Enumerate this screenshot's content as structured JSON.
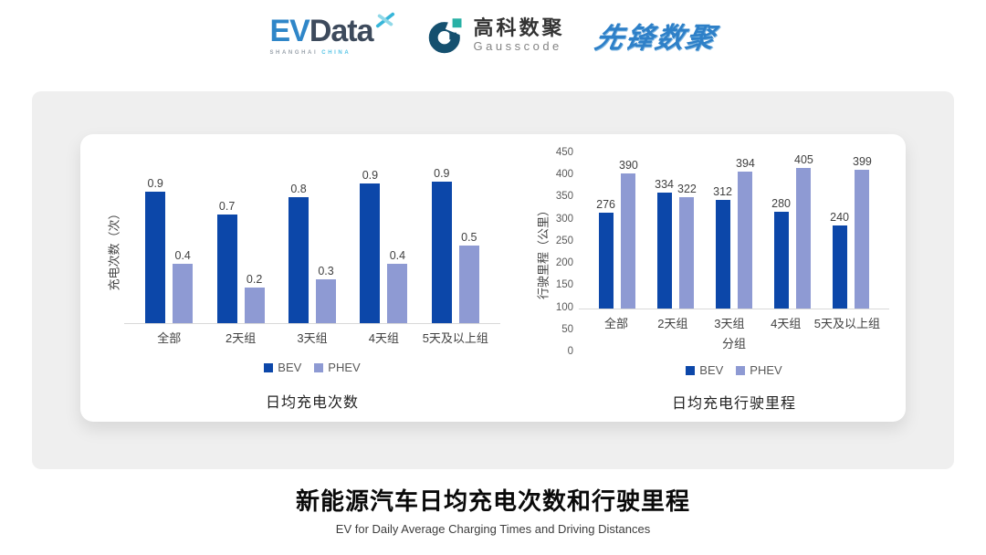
{
  "header": {
    "evdata": {
      "ev": "EV",
      "data": "Data",
      "sub_left": "SHANGHAI",
      "sub_right": "CHINA"
    },
    "gausscode": {
      "cn": "高科数聚",
      "en": "Gausscode"
    },
    "xianfeng": {
      "text": "先锋数聚"
    }
  },
  "colors": {
    "bev": "#0c47a9",
    "phev": "#8e9ad3",
    "panel_gray": "#efefef",
    "axis_line": "#d9d9d9",
    "evdata_blue": "#2f86c8",
    "evdata_slate": "#3d4a5c",
    "gauss_navy": "#15506f",
    "gauss_teal": "#28b0a5",
    "xianfeng_blue": "#2e80c8"
  },
  "chart_data": [
    {
      "type": "bar",
      "title": "日均充电次数",
      "xlabel": "",
      "ylabel": "充电次数（次）",
      "categories": [
        "全部",
        "2天组",
        "3天组",
        "4天组",
        "5天及以上组"
      ],
      "series": [
        {
          "name": "BEV",
          "color": "#0c47a9",
          "values": [
            0.9,
            0.7,
            0.8,
            0.9,
            0.9
          ],
          "plotted_est": [
            0.85,
            0.7,
            0.81,
            0.9,
            0.91
          ]
        },
        {
          "name": "PHEV",
          "color": "#8e9ad3",
          "values": [
            0.4,
            0.2,
            0.3,
            0.4,
            0.5
          ],
          "plotted_est": [
            0.38,
            0.23,
            0.28,
            0.38,
            0.5
          ]
        }
      ],
      "ylim": [
        0,
        1.1
      ],
      "yticks": null,
      "grid": false,
      "legend_position": "bottom"
    },
    {
      "type": "bar",
      "title": "日均充电行驶里程",
      "xlabel": "分组",
      "ylabel": "行驶里程（公里）",
      "categories": [
        "全部",
        "2天组",
        "3天组",
        "4天组",
        "5天及以上组"
      ],
      "series": [
        {
          "name": "BEV",
          "color": "#0c47a9",
          "values": [
            276,
            334,
            312,
            280,
            240
          ]
        },
        {
          "name": "PHEV",
          "color": "#8e9ad3",
          "values": [
            390,
            322,
            394,
            405,
            399
          ]
        }
      ],
      "ylim": [
        0,
        450
      ],
      "yticks": [
        0,
        50,
        100,
        150,
        200,
        250,
        300,
        350,
        400,
        450
      ],
      "grid": false,
      "legend_position": "bottom"
    }
  ],
  "footer": {
    "title": "新能源汽车日均充电次数和行驶里程",
    "subtitle": "EV for Daily Average Charging Times and Driving Distances"
  }
}
